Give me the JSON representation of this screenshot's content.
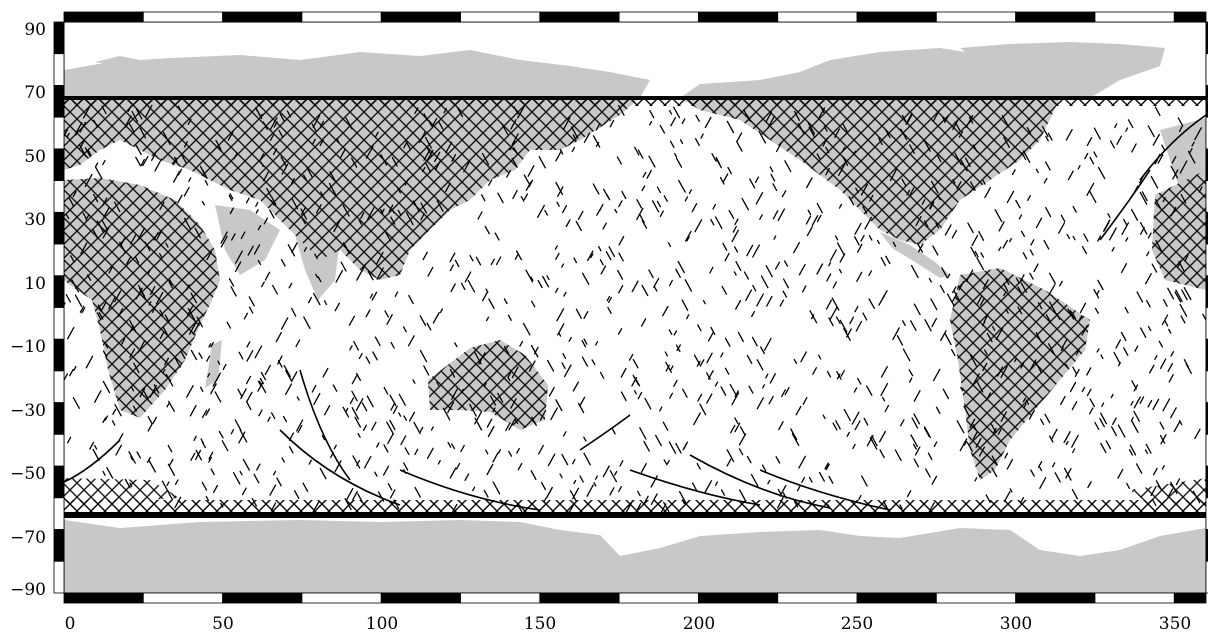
{
  "figure": {
    "projection": "equirectangular",
    "lon_range": [
      0,
      360
    ],
    "lat_range": [
      -90,
      90
    ],
    "land_color": "#c8c8c8",
    "track_color": "#000000",
    "ocean_color": "#ffffff",
    "data_band_lat": [
      -66,
      66
    ],
    "lat_ticks": [
      "90",
      "70",
      "50",
      "30",
      "10",
      "−10",
      "−30",
      "−50",
      "−70",
      "−90"
    ],
    "lon_ticks": [
      "0",
      "50",
      "100",
      "150",
      "200",
      "250",
      "300",
      "350"
    ]
  }
}
